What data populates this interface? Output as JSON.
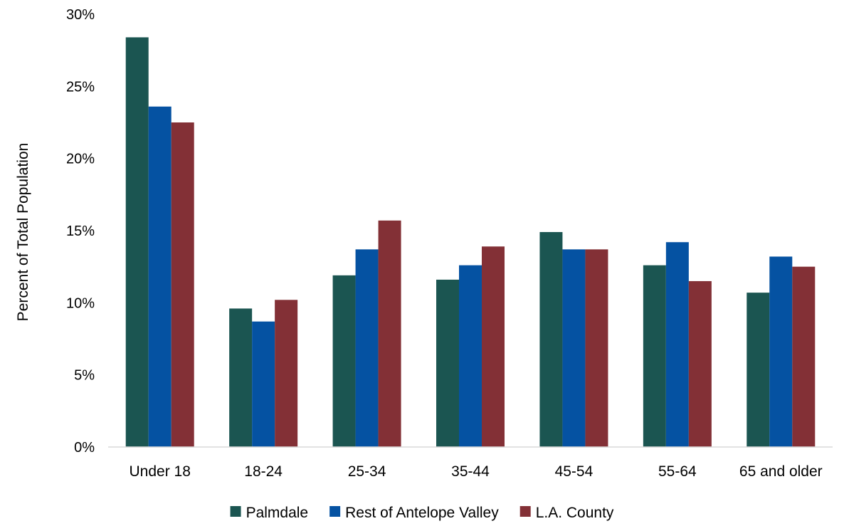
{
  "chart_data": {
    "type": "bar",
    "title": "",
    "xlabel": "",
    "ylabel": "Percent of Total Population",
    "ylim": [
      0,
      30
    ],
    "y_ticks": [
      0,
      5,
      10,
      15,
      20,
      25,
      30
    ],
    "y_tick_suffix": "%",
    "grid": false,
    "legend_position": "bottom",
    "categories": [
      "Under 18",
      "18-24",
      "25-34",
      "35-44",
      "45-54",
      "55-64",
      "65 and older"
    ],
    "series": [
      {
        "name": "Palmdale",
        "color": "#1b5551",
        "values": [
          28.4,
          9.6,
          11.9,
          11.6,
          14.9,
          12.6,
          10.7
        ]
      },
      {
        "name": "Rest of Antelope Valley",
        "color": "#0552a2",
        "values": [
          23.6,
          8.7,
          13.7,
          12.6,
          13.7,
          14.2,
          13.2
        ]
      },
      {
        "name": "L.A. County",
        "color": "#833036",
        "values": [
          22.5,
          10.2,
          15.7,
          13.9,
          13.7,
          11.5,
          12.5
        ]
      }
    ]
  }
}
